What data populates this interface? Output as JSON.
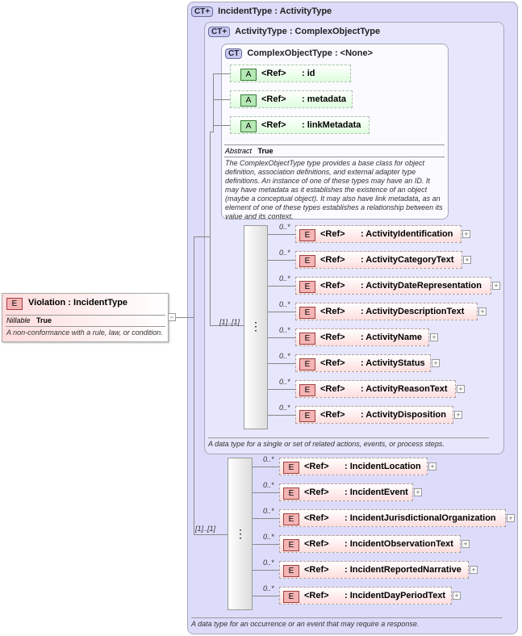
{
  "incident_type": {
    "badge": "CT+",
    "title": "IncidentType : ActivityType",
    "description": "A data type for an occurrence or an event that may require a response.",
    "sequence_multiplicity": "[1]..[1]",
    "elements": [
      {
        "mult": "0..*",
        "ref": "<Ref>",
        "name": ": IncidentLocation"
      },
      {
        "mult": "0..*",
        "ref": "<Ref>",
        "name": ": IncidentEvent"
      },
      {
        "mult": "0..*",
        "ref": "<Ref>",
        "name": ": IncidentJurisdictionalOrganization"
      },
      {
        "mult": "0..*",
        "ref": "<Ref>",
        "name": ": IncidentObservationText"
      },
      {
        "mult": "0..*",
        "ref": "<Ref>",
        "name": ": IncidentReportedNarrative"
      },
      {
        "mult": "0..*",
        "ref": "<Ref>",
        "name": ": IncidentDayPeriodText"
      }
    ]
  },
  "activity_type": {
    "badge": "CT+",
    "title": "ActivityType : ComplexObjectType",
    "description": "A data type for a single or set of related actions, events, or process steps.",
    "sequence_multiplicity": "[1]..[1]",
    "elements": [
      {
        "mult": "0..*",
        "ref": "<Ref>",
        "name": ": ActivityIdentification"
      },
      {
        "mult": "0..*",
        "ref": "<Ref>",
        "name": ": ActivityCategoryText"
      },
      {
        "mult": "0..*",
        "ref": "<Ref>",
        "name": ": ActivityDateRepresentation"
      },
      {
        "mult": "0..*",
        "ref": "<Ref>",
        "name": ": ActivityDescriptionText"
      },
      {
        "mult": "0..*",
        "ref": "<Ref>",
        "name": ": ActivityName"
      },
      {
        "mult": "0..*",
        "ref": "<Ref>",
        "name": ": ActivityStatus"
      },
      {
        "mult": "0..*",
        "ref": "<Ref>",
        "name": ": ActivityReasonText"
      },
      {
        "mult": "0..*",
        "ref": "<Ref>",
        "name": ": ActivityDisposition"
      }
    ]
  },
  "complex_object_type": {
    "badge": "CT",
    "title": "ComplexObjectType : <None>",
    "abstract_label": "Abstract",
    "abstract_value": "True",
    "description": "The ComplexObjectType type provides a base class for object definition, association definitions, and external adapter type definitions. An instance of one of these types may have an ID. It may have metadata as it establishes the existence of an object (maybe a conceptual object). It may also have link metadata, as an element of one of these types establishes a relationship between its value and its context.",
    "attributes": [
      {
        "badge": "A",
        "ref": "<Ref>",
        "name": ": id"
      },
      {
        "badge": "A",
        "ref": "<Ref>",
        "name": ": metadata"
      },
      {
        "badge": "A",
        "ref": "<Ref>",
        "name": ": linkMetadata"
      }
    ]
  },
  "violation": {
    "badge": "E",
    "title": "Violation : IncidentType",
    "nillable_label": "Nillable",
    "nillable_value": "True",
    "description": "A non-conformance with a rule, law, or condition."
  },
  "element_badge": "E"
}
